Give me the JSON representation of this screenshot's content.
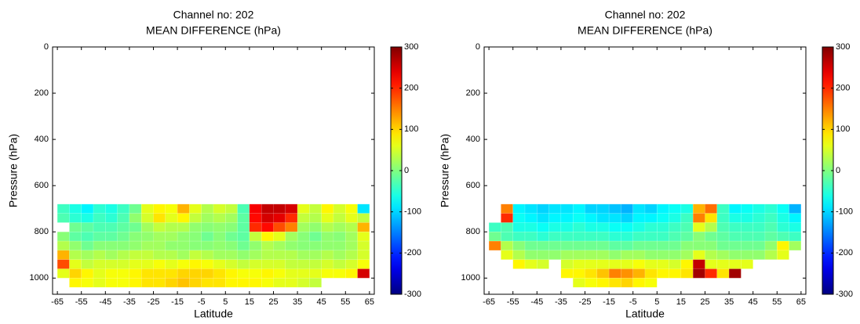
{
  "chart_data": [
    {
      "type": "heatmap",
      "title": "Channel no: 202",
      "subtitle": "MEAN DIFFERENCE (hPa)",
      "x_label": "Latitude",
      "y_label": "Pressure (hPa)",
      "xlim": [
        -67,
        67
      ],
      "ylim": [
        0,
        1070
      ],
      "y_reversed": true,
      "xticks": [
        -65,
        -55,
        -45,
        -35,
        -25,
        -15,
        -5,
        5,
        15,
        25,
        35,
        45,
        55,
        65
      ],
      "yticks": [
        0,
        200,
        400,
        600,
        800,
        1000
      ],
      "colormap": "jet",
      "clim": [
        -300,
        300
      ],
      "cticks": [
        -300,
        -200,
        -100,
        0,
        100,
        200,
        300
      ],
      "xbins": [
        -65,
        -60,
        -55,
        -50,
        -45,
        -40,
        -35,
        -30,
        -25,
        -20,
        -15,
        -10,
        -5,
        0,
        5,
        10,
        15,
        20,
        25,
        30,
        35,
        40,
        45,
        50,
        55,
        60,
        65
      ],
      "ybins": [
        680,
        720,
        760,
        800,
        840,
        880,
        920,
        960,
        1000,
        1040
      ],
      "z": [
        [
          -40,
          -60,
          -80,
          -50,
          -60,
          -40,
          -10,
          60,
          80,
          70,
          120,
          60,
          30,
          50,
          40,
          -30,
          230,
          260,
          260,
          250,
          60,
          40,
          80,
          50,
          70,
          -90
        ],
        [
          -30,
          -50,
          -60,
          -40,
          -50,
          -30,
          10,
          50,
          90,
          60,
          80,
          40,
          20,
          30,
          20,
          -20,
          220,
          250,
          240,
          200,
          40,
          30,
          60,
          40,
          60,
          40
        ],
        [
          null,
          -10,
          -20,
          -30,
          -30,
          -20,
          -10,
          20,
          40,
          30,
          30,
          10,
          5,
          10,
          5,
          -20,
          200,
          220,
          180,
          150,
          20,
          10,
          30,
          20,
          30,
          120
        ],
        [
          5,
          -20,
          -30,
          -20,
          -20,
          -10,
          5,
          10,
          20,
          20,
          10,
          5,
          -10,
          5,
          -10,
          -20,
          40,
          80,
          60,
          20,
          5,
          -10,
          10,
          5,
          20,
          60
        ],
        [
          30,
          10,
          -10,
          5,
          5,
          5,
          10,
          20,
          20,
          10,
          10,
          5,
          5,
          10,
          5,
          -10,
          10,
          30,
          20,
          10,
          5,
          5,
          10,
          10,
          20,
          50
        ],
        [
          120,
          30,
          20,
          30,
          20,
          30,
          40,
          40,
          30,
          30,
          20,
          40,
          30,
          20,
          20,
          10,
          20,
          30,
          30,
          30,
          20,
          20,
          30,
          20,
          30,
          50
        ],
        [
          180,
          60,
          40,
          50,
          50,
          50,
          60,
          60,
          70,
          60,
          70,
          80,
          70,
          60,
          50,
          40,
          50,
          50,
          50,
          40,
          40,
          40,
          50,
          40,
          50,
          70
        ],
        [
          60,
          100,
          80,
          60,
          70,
          70,
          80,
          90,
          90,
          90,
          100,
          100,
          100,
          90,
          80,
          70,
          70,
          80,
          70,
          60,
          60,
          60,
          70,
          70,
          80,
          250
        ],
        [
          null,
          80,
          70,
          60,
          70,
          70,
          80,
          90,
          90,
          100,
          110,
          100,
          90,
          90,
          80,
          80,
          80,
          70,
          60,
          60,
          50,
          40,
          null,
          null,
          null,
          null
        ]
      ]
    },
    {
      "type": "heatmap",
      "title": "Channel no: 202",
      "subtitle": "MEAN DIFFERENCE (hPa)",
      "x_label": "Latitude",
      "y_label": "Pressure (hPa)",
      "xlim": [
        -67,
        67
      ],
      "ylim": [
        0,
        1070
      ],
      "y_reversed": true,
      "xticks": [
        -65,
        -55,
        -45,
        -35,
        -25,
        -15,
        -5,
        5,
        15,
        25,
        35,
        45,
        55,
        65
      ],
      "yticks": [
        0,
        200,
        400,
        600,
        800,
        1000
      ],
      "colormap": "jet",
      "clim": [
        -300,
        300
      ],
      "cticks": [
        -300,
        -200,
        -100,
        0,
        100,
        200,
        300
      ],
      "xbins": [
        -65,
        -60,
        -55,
        -50,
        -45,
        -40,
        -35,
        -30,
        -25,
        -20,
        -15,
        -10,
        -5,
        0,
        5,
        10,
        15,
        20,
        25,
        30,
        35,
        40,
        45,
        50,
        55,
        60,
        65
      ],
      "ybins": [
        680,
        720,
        760,
        800,
        840,
        880,
        920,
        960,
        1000,
        1040
      ],
      "z": [
        [
          null,
          150,
          -80,
          -90,
          -100,
          -90,
          -90,
          -80,
          -100,
          -100,
          -110,
          -120,
          -90,
          -100,
          -80,
          -70,
          -60,
          120,
          160,
          -40,
          -80,
          -70,
          -60,
          -50,
          -70,
          -120
        ],
        [
          null,
          200,
          -70,
          -80,
          -90,
          -80,
          -80,
          -70,
          -80,
          -90,
          -90,
          -100,
          -80,
          -80,
          -70,
          -60,
          -40,
          150,
          90,
          -40,
          -60,
          -60,
          -50,
          -40,
          -60,
          -80
        ],
        [
          -40,
          -30,
          -60,
          -60,
          -70,
          -60,
          -60,
          -50,
          -60,
          -60,
          -70,
          -70,
          -60,
          -50,
          -50,
          -40,
          -30,
          60,
          30,
          -30,
          -40,
          -40,
          -40,
          -30,
          -50,
          -60
        ],
        [
          -10,
          -30,
          -40,
          -40,
          -50,
          -40,
          -40,
          -40,
          -40,
          -40,
          -50,
          -50,
          -40,
          -40,
          -40,
          -30,
          -20,
          5,
          -10,
          -20,
          -30,
          -30,
          -30,
          -20,
          -30,
          -40
        ],
        [
          150,
          30,
          5,
          -10,
          -10,
          -10,
          -10,
          -10,
          -10,
          -10,
          -20,
          -20,
          -10,
          -10,
          -10,
          -10,
          5,
          5,
          5,
          -10,
          -10,
          -10,
          -10,
          10,
          80,
          20
        ],
        [
          null,
          60,
          30,
          10,
          10,
          10,
          20,
          20,
          20,
          20,
          10,
          20,
          20,
          10,
          10,
          10,
          20,
          60,
          30,
          20,
          10,
          10,
          10,
          30,
          60,
          null
        ],
        [
          null,
          null,
          80,
          60,
          50,
          null,
          50,
          60,
          60,
          60,
          60,
          60,
          70,
          60,
          60,
          50,
          80,
          260,
          60,
          60,
          60,
          60,
          null,
          null,
          null,
          null
        ],
        [
          null,
          null,
          null,
          null,
          null,
          null,
          80,
          80,
          90,
          110,
          150,
          140,
          120,
          90,
          80,
          80,
          90,
          280,
          200,
          90,
          280,
          null,
          null,
          null,
          null,
          null
        ],
        [
          null,
          null,
          null,
          null,
          null,
          null,
          null,
          60,
          70,
          80,
          90,
          100,
          80,
          70,
          null,
          null,
          null,
          null,
          null,
          null,
          null,
          null,
          null,
          null,
          null,
          null
        ]
      ]
    }
  ]
}
